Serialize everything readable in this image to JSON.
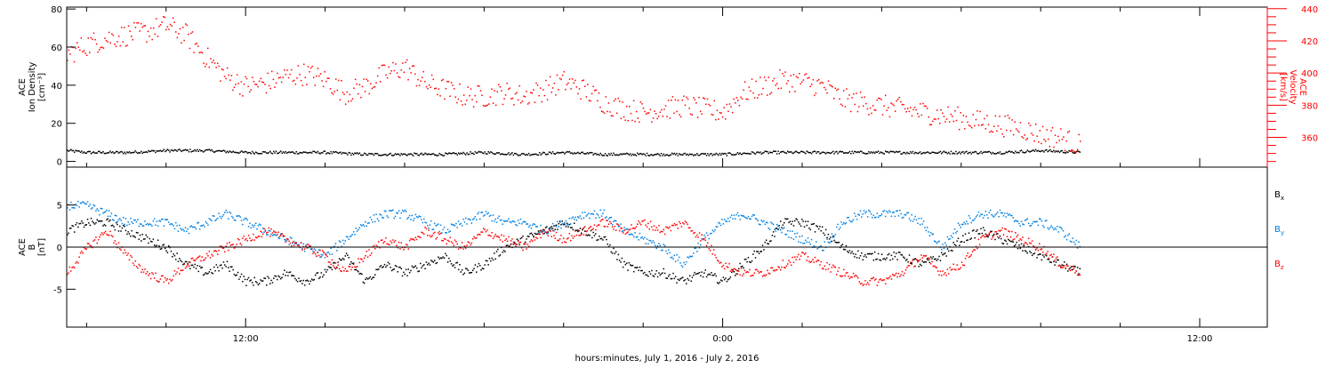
{
  "xlabel": "hours:minutes, July  1, 2016 - July  2, 2016",
  "colors": {
    "black": "#000000",
    "red": "#ff0000",
    "blue": "#0080e0"
  },
  "chart_data": [
    {
      "type": "scatter",
      "panel": "top",
      "x_ticks": [
        {
          "t": 12,
          "label": "12:00"
        },
        {
          "t": 24,
          "label": "0:00"
        },
        {
          "t": 36,
          "label": "12:00"
        }
      ],
      "xlim_hours": [
        7.5,
        37.7
      ],
      "left_axis": {
        "label_lines": [
          "ACE",
          "Ion Density",
          "[cm⁻³]"
        ],
        "ylim": [
          -3,
          81
        ],
        "ticks": [
          0,
          20,
          40,
          60,
          80
        ],
        "color": "#000000"
      },
      "right_axis": {
        "label_lines": [
          "ACE",
          "Velocity",
          "[km/s]"
        ],
        "ylim": [
          341.5,
          441
        ],
        "ticks": [
          360,
          380,
          400,
          420,
          440
        ],
        "color": "#ff0000"
      },
      "series": [
        {
          "name": "Ion Density",
          "axis": "left",
          "color": "#000000",
          "t_hours": [
            7.5,
            8.0,
            9.0,
            10.0,
            11.0,
            12.0,
            13.0,
            14.0,
            15.0,
            16.0,
            17.0,
            18.0,
            19.0,
            20.0,
            21.0,
            22.0,
            23.0,
            24.0,
            25.0,
            26.0,
            27.0,
            28.0,
            29.0,
            30.0,
            31.0,
            32.0,
            33.0
          ],
          "values": [
            6,
            5,
            5,
            6,
            6,
            5,
            5,
            5,
            4,
            4,
            4,
            5,
            4,
            5,
            4,
            4,
            4,
            4,
            5,
            5,
            5,
            5,
            5,
            5,
            5,
            6,
            5
          ]
        },
        {
          "name": "Velocity",
          "axis": "right",
          "color": "#ff0000",
          "t_hours": [
            7.5,
            8.0,
            8.5,
            9.0,
            9.5,
            10.0,
            10.5,
            11.0,
            11.5,
            12.0,
            12.5,
            13.0,
            13.5,
            14.0,
            14.5,
            15.0,
            15.5,
            16.0,
            16.5,
            17.0,
            17.5,
            18.0,
            18.5,
            19.0,
            19.5,
            20.0,
            20.5,
            21.0,
            21.5,
            22.0,
            22.5,
            23.0,
            23.5,
            24.0,
            24.5,
            25.0,
            25.5,
            26.0,
            26.5,
            27.0,
            27.5,
            28.0,
            28.5,
            29.0,
            29.5,
            30.0,
            30.5,
            31.0,
            31.5,
            32.0,
            32.5,
            33.0
          ],
          "values": [
            412,
            418,
            422,
            424,
            426,
            430,
            424,
            410,
            398,
            392,
            394,
            398,
            400,
            396,
            388,
            392,
            400,
            404,
            394,
            390,
            386,
            386,
            388,
            386,
            390,
            395,
            390,
            382,
            378,
            376,
            378,
            380,
            378,
            376,
            388,
            392,
            396,
            395,
            392,
            384,
            382,
            380,
            378,
            376,
            374,
            372,
            370,
            368,
            366,
            362,
            360,
            355
          ]
        }
      ]
    },
    {
      "type": "scatter",
      "panel": "bottom",
      "x_ticks": [
        {
          "t": 12,
          "label": "12:00"
        },
        {
          "t": 24,
          "label": "0:00"
        },
        {
          "t": 36,
          "label": "12:00"
        }
      ],
      "xlim_hours": [
        7.5,
        37.7
      ],
      "left_axis": {
        "label_lines": [
          "ACE",
          "B",
          "[nT]"
        ],
        "ylim": [
          -9.5,
          9.5
        ],
        "ticks": [
          -5,
          0,
          5
        ],
        "color": "#000000"
      },
      "legend": [
        {
          "label": "Bx",
          "base": "B",
          "sub": "x",
          "color": "#000000"
        },
        {
          "label": "By",
          "base": "B",
          "sub": "y",
          "color": "#0080e0"
        },
        {
          "label": "Bz",
          "base": "B",
          "sub": "z",
          "color": "#ff0000"
        }
      ],
      "series": [
        {
          "name": "Bx",
          "color": "#000000",
          "t_hours": [
            7.5,
            8.0,
            8.5,
            9.0,
            9.5,
            10.0,
            10.5,
            11.0,
            11.5,
            12.0,
            12.5,
            13.0,
            13.5,
            14.0,
            14.5,
            15.0,
            15.5,
            16.0,
            16.5,
            17.0,
            17.5,
            18.0,
            18.5,
            19.0,
            19.5,
            20.0,
            20.5,
            21.0,
            21.5,
            22.0,
            22.5,
            23.0,
            23.5,
            24.0,
            24.5,
            25.0,
            25.5,
            26.0,
            26.5,
            27.0,
            27.5,
            28.0,
            28.5,
            29.0,
            29.5,
            30.0,
            30.5,
            31.0,
            31.5,
            32.0,
            32.5,
            33.0
          ],
          "values": [
            2,
            3,
            3,
            2,
            1,
            0,
            -2,
            -3,
            -2,
            -4,
            -4,
            -3,
            -4,
            -3,
            -1,
            -4,
            -2,
            -3,
            -2,
            -1,
            -3,
            -2,
            0,
            1,
            2,
            3,
            2,
            1,
            -2,
            -3,
            -3,
            -4,
            -3,
            -4,
            -2,
            0,
            3,
            3,
            2,
            0,
            -1,
            -1,
            -1,
            -2,
            -1,
            1,
            2,
            1,
            0,
            -1,
            -2,
            -3
          ]
        },
        {
          "name": "By",
          "color": "#0080e0",
          "t_hours": [
            7.5,
            8.0,
            8.5,
            9.0,
            9.5,
            10.0,
            10.5,
            11.0,
            11.5,
            12.0,
            12.5,
            13.0,
            13.5,
            14.0,
            14.5,
            15.0,
            15.5,
            16.0,
            16.5,
            17.0,
            17.5,
            18.0,
            18.5,
            19.0,
            19.5,
            20.0,
            20.5,
            21.0,
            21.5,
            22.0,
            22.5,
            23.0,
            23.5,
            24.0,
            24.5,
            25.0,
            25.5,
            26.0,
            26.5,
            27.0,
            27.5,
            28.0,
            28.5,
            29.0,
            29.5,
            30.0,
            30.5,
            31.0,
            31.5,
            32.0,
            32.5,
            33.0
          ],
          "values": [
            5,
            5,
            4,
            3,
            3,
            3,
            2,
            3,
            4,
            3,
            2,
            1,
            0,
            -1,
            1,
            3,
            4,
            4,
            3,
            2,
            3,
            4,
            3,
            3,
            2,
            3,
            4,
            4,
            2,
            1,
            0,
            -2,
            1,
            3,
            4,
            3,
            2,
            1,
            0,
            3,
            4,
            4,
            4,
            3,
            0,
            3,
            4,
            4,
            3,
            3,
            2,
            0
          ]
        },
        {
          "name": "Bz",
          "color": "#ff0000",
          "t_hours": [
            7.5,
            8.0,
            8.5,
            9.0,
            9.5,
            10.0,
            10.5,
            11.0,
            11.5,
            12.0,
            12.5,
            13.0,
            13.5,
            14.0,
            14.5,
            15.0,
            15.5,
            16.0,
            16.5,
            17.0,
            17.5,
            18.0,
            18.5,
            19.0,
            19.5,
            20.0,
            20.5,
            21.0,
            21.5,
            22.0,
            22.5,
            23.0,
            23.5,
            24.0,
            24.5,
            25.0,
            25.5,
            26.0,
            26.5,
            27.0,
            27.5,
            28.0,
            28.5,
            29.0,
            29.5,
            30.0,
            30.5,
            31.0,
            31.5,
            32.0,
            32.5,
            33.0
          ],
          "values": [
            -3,
            0,
            2,
            -1,
            -3,
            -4,
            -2,
            -1,
            0,
            1,
            2,
            1,
            0,
            -1,
            -3,
            -1,
            1,
            0,
            2,
            1,
            0,
            2,
            1,
            0,
            2,
            1,
            2,
            3,
            2,
            3,
            2,
            3,
            1,
            -2,
            -3,
            -3,
            -2,
            -1,
            -2,
            -3,
            -4,
            -4,
            -3,
            -1,
            -3,
            -2,
            1,
            2,
            1,
            0,
            -2,
            -3
          ]
        }
      ]
    }
  ]
}
